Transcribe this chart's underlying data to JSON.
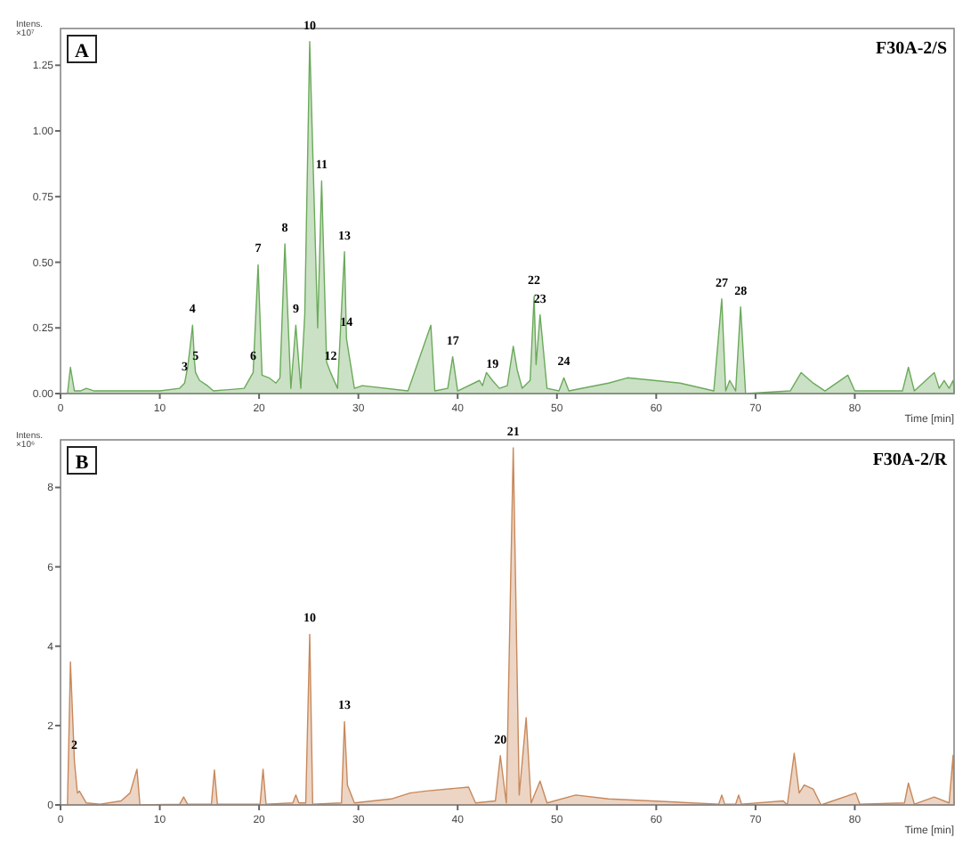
{
  "chart_data": [
    {
      "type": "area",
      "title": "A",
      "subtitle": "F30A-2/S",
      "xlabel": "Time [min]",
      "ylabel": "Intens. ×10⁷",
      "xlim": [
        0,
        90
      ],
      "ylim": [
        0,
        1.39
      ],
      "xticks": [
        0,
        10,
        20,
        30,
        40,
        50,
        60,
        70,
        80
      ],
      "yticks": [
        {
          "value": 0,
          "label": "0.00"
        },
        {
          "value": 0.25,
          "label": "0.25"
        },
        {
          "value": 0.5,
          "label": "0.50"
        },
        {
          "value": 0.75,
          "label": "0.75"
        },
        {
          "value": 1,
          "label": "1.00"
        },
        {
          "value": 1.25,
          "label": "1.25"
        }
      ],
      "series": [
        {
          "color": "#6aaa5a",
          "x": [
            0,
            0.7,
            1.0,
            1.4,
            2.0,
            2.6,
            3.4,
            10,
            12.0,
            12.5,
            12.8,
            13.0,
            13.3,
            13.5,
            13.6,
            14.0,
            14.8,
            15.4,
            18.5,
            19.4,
            19.9,
            20.3,
            21.0,
            21.7,
            22.1,
            22.6,
            23.2,
            23.7,
            24.2,
            24.6,
            25.1,
            25.9,
            26.3,
            26.8,
            27.2,
            27.9,
            28.6,
            28.8,
            29.6,
            30.4,
            35.0,
            37.3,
            37.7,
            39.0,
            39.5,
            40.0,
            42.2,
            42.5,
            42.9,
            43.5,
            44.2,
            45.0,
            45.6,
            46.0,
            46.5,
            47.3,
            47.7,
            47.9,
            48.3,
            49.0,
            50.2,
            50.7,
            51.2,
            55.2,
            57.1,
            59.8,
            62.4,
            65.8,
            66.6,
            67.0,
            67.4,
            68.0,
            68.5,
            69.0,
            73.5,
            74.6,
            75.8,
            77.0,
            79.3,
            80.0,
            84.8,
            85.4,
            86.0,
            88.0,
            88.5,
            89.0,
            89.5,
            89.9,
            90
          ],
          "values": [
            0,
            0,
            0.1,
            0.01,
            0.01,
            0.02,
            0.01,
            0.01,
            0.02,
            0.04,
            0.1,
            0.16,
            0.26,
            0.12,
            0.08,
            0.05,
            0.03,
            0.01,
            0.02,
            0.08,
            0.49,
            0.07,
            0.06,
            0.04,
            0.06,
            0.57,
            0.02,
            0.26,
            0.02,
            0.3,
            1.34,
            0.25,
            0.81,
            0.12,
            0.08,
            0.02,
            0.54,
            0.21,
            0.02,
            0.03,
            0.01,
            0.26,
            0.01,
            0.02,
            0.14,
            0.01,
            0.05,
            0.03,
            0.08,
            0.05,
            0.02,
            0.03,
            0.18,
            0.09,
            0.02,
            0.05,
            0.37,
            0.11,
            0.3,
            0.02,
            0.01,
            0.06,
            0.01,
            0.04,
            0.06,
            0.05,
            0.04,
            0.01,
            0.36,
            0.01,
            0.05,
            0.01,
            0.33,
            0,
            0.01,
            0.08,
            0.04,
            0.01,
            0.07,
            0.01,
            0.01,
            0.1,
            0.01,
            0.08,
            0.02,
            0.05,
            0.02,
            0.05,
            0.02
          ]
        }
      ],
      "annotations": [
        {
          "text": "3",
          "x": 12.5,
          "y": 0.04
        },
        {
          "text": "4",
          "x": 13.3,
          "y": 0.26
        },
        {
          "text": "5",
          "x": 13.6,
          "y": 0.08
        },
        {
          "text": "6",
          "x": 19.4,
          "y": 0.08
        },
        {
          "text": "7",
          "x": 19.9,
          "y": 0.49
        },
        {
          "text": "8",
          "x": 22.6,
          "y": 0.57
        },
        {
          "text": "9",
          "x": 23.7,
          "y": 0.26
        },
        {
          "text": "10",
          "x": 25.1,
          "y": 1.34
        },
        {
          "text": "11",
          "x": 26.3,
          "y": 0.81
        },
        {
          "text": "12",
          "x": 27.2,
          "y": 0.08
        },
        {
          "text": "13",
          "x": 28.6,
          "y": 0.54
        },
        {
          "text": "14",
          "x": 28.8,
          "y": 0.21
        },
        {
          "text": "17",
          "x": 39.5,
          "y": 0.14
        },
        {
          "text": "19",
          "x": 43.5,
          "y": 0.05
        },
        {
          "text": "22",
          "x": 47.7,
          "y": 0.37
        },
        {
          "text": "23",
          "x": 48.3,
          "y": 0.3
        },
        {
          "text": "24",
          "x": 50.7,
          "y": 0.06
        },
        {
          "text": "27",
          "x": 66.6,
          "y": 0.36
        },
        {
          "text": "28",
          "x": 68.5,
          "y": 0.33
        }
      ]
    },
    {
      "type": "area",
      "title": "B",
      "subtitle": "F30A-2/R",
      "xlabel": "Time [min]",
      "ylabel": "Intens. ×10⁶",
      "xlim": [
        0,
        90
      ],
      "ylim": [
        0,
        9.2
      ],
      "xticks": [
        0,
        10,
        20,
        30,
        40,
        50,
        60,
        70,
        80
      ],
      "yticks": [
        0,
        2,
        4,
        6,
        8
      ],
      "series": [
        {
          "color": "#c8885a",
          "x": [
            0,
            0.7,
            1.0,
            1.4,
            1.7,
            1.9,
            2.6,
            4.0,
            6.1,
            7.0,
            7.7,
            8.0,
            12.0,
            12.4,
            12.8,
            15.2,
            15.5,
            15.8,
            20.1,
            20.4,
            20.7,
            23.4,
            23.7,
            24.0,
            24.7,
            25.1,
            25.4,
            28.3,
            28.6,
            28.9,
            29.6,
            33.3,
            35.2,
            36.8,
            41.1,
            41.8,
            43.8,
            44.3,
            44.9,
            45.6,
            46.2,
            46.9,
            47.4,
            48.3,
            49.0,
            51.9,
            55.2,
            66.3,
            66.6,
            66.9,
            68.0,
            68.3,
            68.6,
            72.8,
            73.2,
            73.9,
            74.4,
            74.9,
            75.8,
            76.6,
            80.1,
            80.5,
            85.0,
            85.4,
            86.0,
            88.0,
            89.5,
            89.9,
            90
          ],
          "values": [
            0,
            0,
            3.6,
            1.1,
            0.3,
            0.35,
            0.05,
            0.02,
            0.1,
            0.3,
            0.9,
            0,
            0.02,
            0.2,
            0.02,
            0.02,
            0.88,
            0.02,
            0.02,
            0.9,
            0.02,
            0.05,
            0.25,
            0.05,
            0.05,
            4.3,
            0.02,
            0.05,
            2.1,
            0.5,
            0.05,
            0.15,
            0.3,
            0.35,
            0.45,
            0.05,
            0.1,
            1.24,
            0.05,
            9.0,
            0.25,
            2.2,
            0.05,
            0.6,
            0.05,
            0.25,
            0.15,
            0.02,
            0.25,
            0.02,
            0.02,
            0.25,
            0.02,
            0.1,
            0,
            1.3,
            0.3,
            0.5,
            0.4,
            0,
            0.3,
            0.02,
            0.05,
            0.55,
            0.02,
            0.2,
            0.05,
            1.25,
            0
          ]
        }
      ],
      "annotations": [
        {
          "text": "2",
          "x": 1.4,
          "y": 1.1
        },
        {
          "text": "10",
          "x": 25.1,
          "y": 4.3
        },
        {
          "text": "13",
          "x": 28.6,
          "y": 2.1
        },
        {
          "text": "20",
          "x": 44.3,
          "y": 1.24
        },
        {
          "text": "21",
          "x": 45.6,
          "y": 9.0
        }
      ]
    }
  ]
}
